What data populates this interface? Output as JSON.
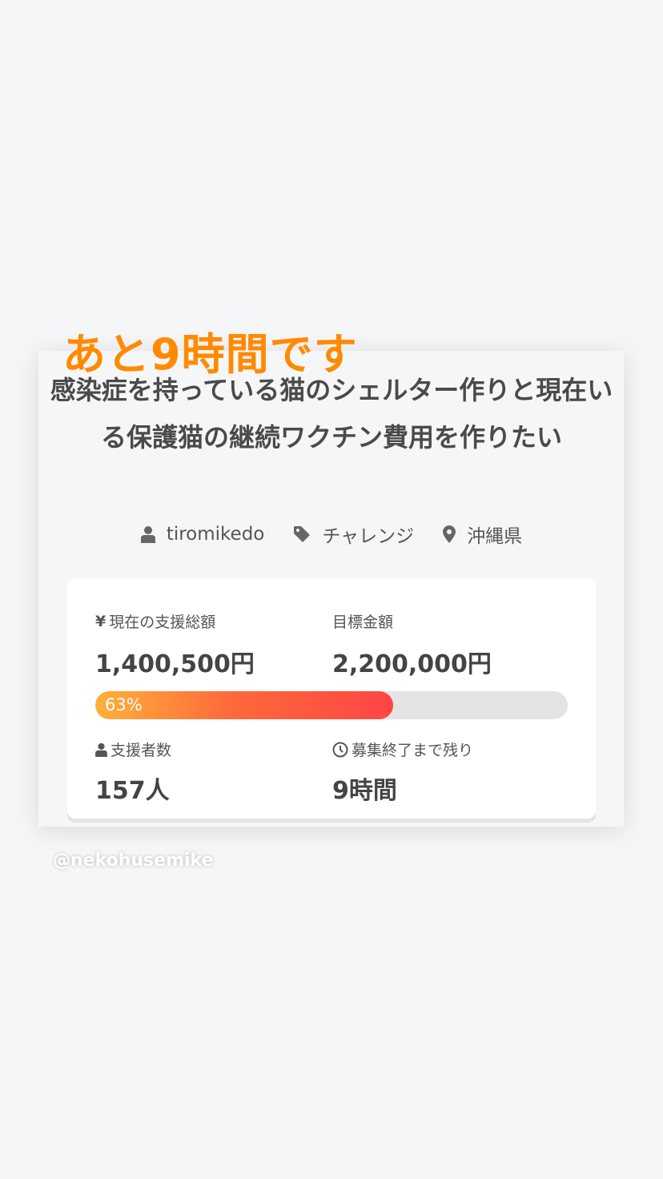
{
  "overlay_text": "あと9時間です",
  "project": {
    "title": "感染症を持っている猫のシェルター作りと現在いる保護猫の継続ワクチン費用を作りたい",
    "owner": "tiromikedo",
    "category": "チャレンジ",
    "location": "沖縄県"
  },
  "stats": {
    "current_label": "現在の支援総額",
    "current_value": "1,400,500円",
    "goal_label": "目標金額",
    "goal_value": "2,200,000円",
    "progress_percent": 63,
    "progress_label": "63%",
    "supporters_label": "支援者数",
    "supporters_value": "157人",
    "remaining_label": "募集終了まで残り",
    "remaining_value": "9時間"
  },
  "colors": {
    "overlay": "#ff8a00",
    "progress_start": "#ffb13a",
    "progress_end": "#ff4545"
  },
  "watermark": "@nekohusemike"
}
